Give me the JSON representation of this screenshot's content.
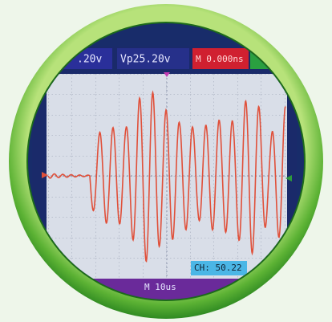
{
  "top_bar": {
    "channel_scale": ".20v",
    "peak_voltage": "Vp25.20v",
    "time_offset": "M 0.000ns"
  },
  "bottom_bar": {
    "timebase": "M 10us"
  },
  "readout": "CH: 50.22"
}
